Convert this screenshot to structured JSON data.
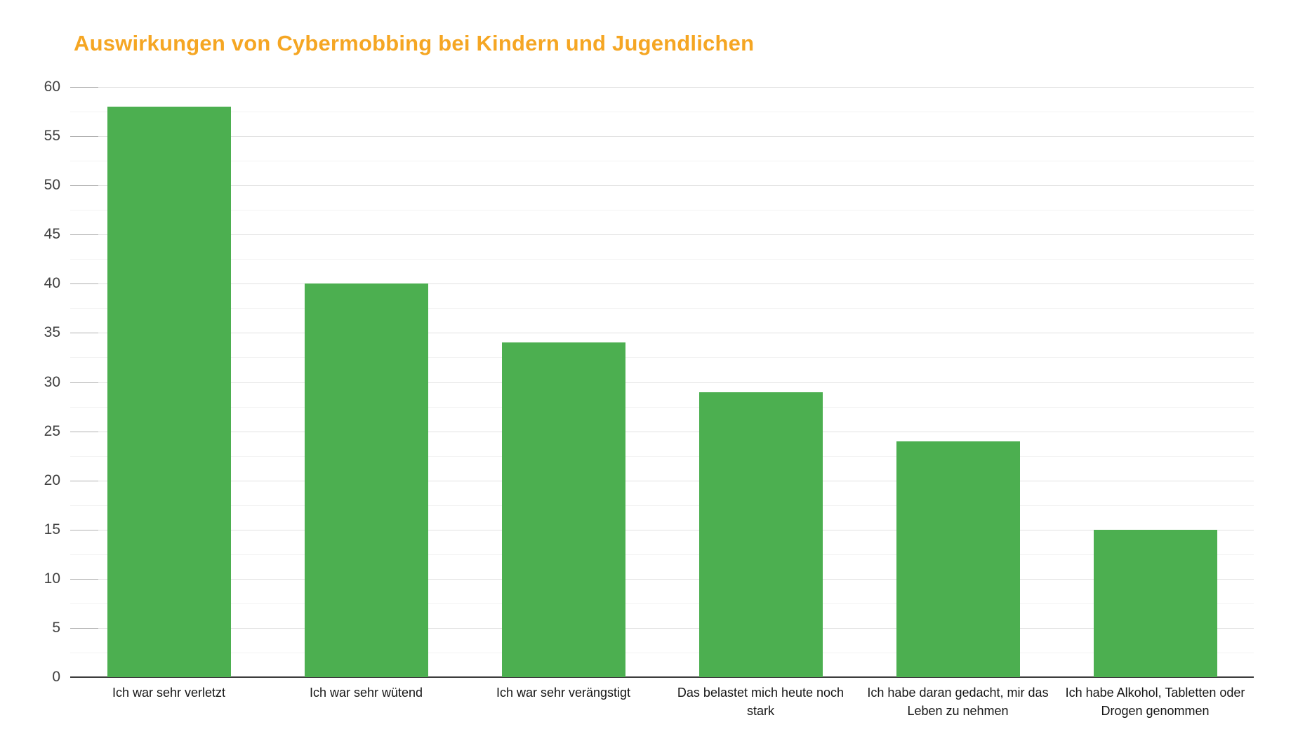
{
  "chart_data": {
    "type": "bar",
    "title": "Auswirkungen von Cybermobbing bei Kindern und Jugendlichen",
    "categories": [
      "Ich war sehr verletzt",
      "Ich war sehr wütend",
      "Ich war sehr verängstigt",
      "Das belastet mich heute noch stark",
      "Ich habe daran gedacht, mir das Leben zu nehmen",
      "Ich habe Alkohol, Tabletten oder Drogen genommen"
    ],
    "values": [
      58,
      40,
      34,
      29,
      24,
      15
    ],
    "y_tick_labels": [
      "0",
      "5",
      "10",
      "15",
      "20",
      "25",
      "30",
      "35",
      "40",
      "45",
      "50",
      "55",
      "60"
    ],
    "xlabel": "",
    "ylabel": "",
    "ylim": [
      0,
      60
    ],
    "y_major_step": 5,
    "y_minor_step": 2.5,
    "grid": "on",
    "legend": "none",
    "colors": {
      "bar": "#4caf50",
      "title": "#f5a623",
      "grid_major": "#e2e2e2",
      "grid_minor": "#f3f3f3",
      "tick": "#b0b0b0",
      "baseline": "#3c3c3c",
      "y_label": "#404040",
      "x_label": "#161616",
      "background": "#ffffff"
    }
  }
}
